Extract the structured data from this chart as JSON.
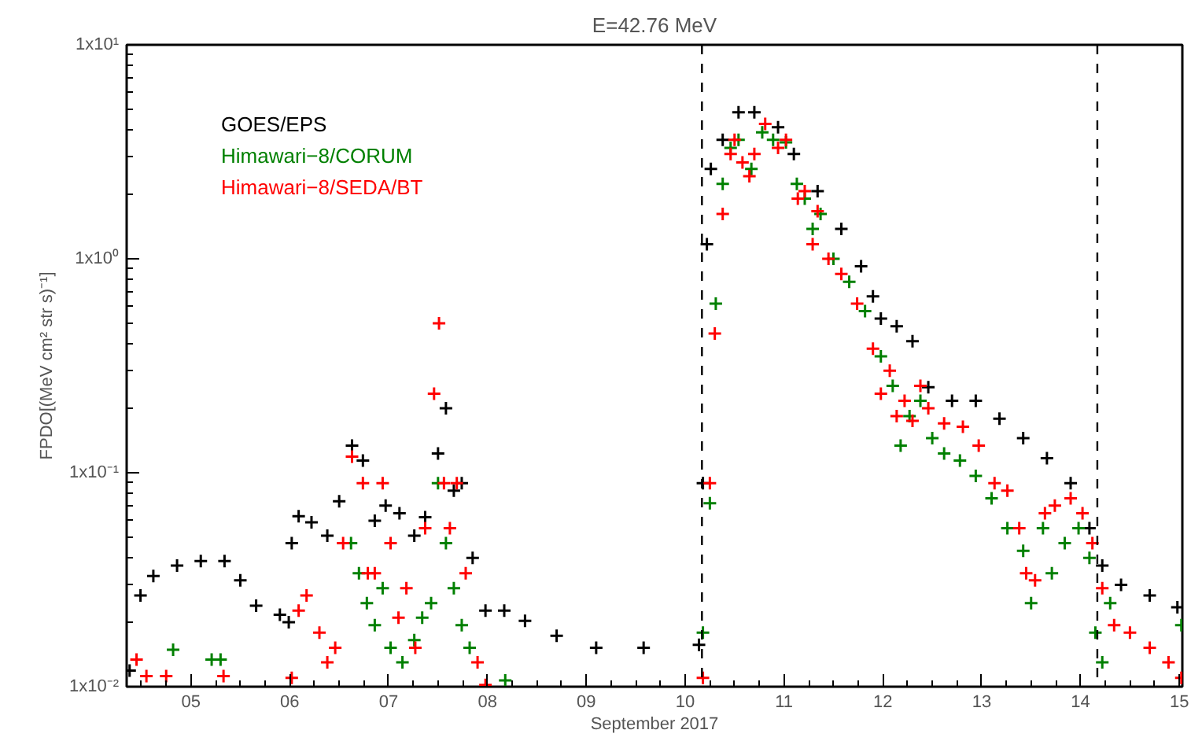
{
  "chart_data": {
    "type": "scatter",
    "title": "E=42.76 MeV",
    "xlabel": "September 2017",
    "ylabel": "FPDO[(MeV cm² str s)⁻¹]",
    "log": "y",
    "marker": "cross",
    "grid": false,
    "legend": "top left",
    "xlim": [
      4.35,
      15.03
    ],
    "xticks": [
      {
        "value": 5,
        "label": "05"
      },
      {
        "value": 6,
        "label": "06"
      },
      {
        "value": 7,
        "label": "07"
      },
      {
        "value": 8,
        "label": "08"
      },
      {
        "value": 9,
        "label": "09"
      },
      {
        "value": 10,
        "label": "10"
      },
      {
        "value": 11,
        "label": "11"
      },
      {
        "value": 12,
        "label": "12"
      },
      {
        "value": 13,
        "label": "13"
      },
      {
        "value": 14,
        "label": "14"
      },
      {
        "value": 15,
        "label": "15"
      }
    ],
    "ylim": [
      0.01,
      10
    ],
    "yticks": [
      {
        "value": 0.01,
        "label": "1x10⁻²"
      },
      {
        "value": 0.1,
        "label": "1x10⁻¹"
      },
      {
        "value": 1,
        "label": "1x10⁰"
      },
      {
        "value": 10,
        "label": "1x10¹"
      }
    ],
    "ref_lines": [
      {
        "axis": "x",
        "value": 10.17,
        "line_style": "dashed",
        "color": "#000000"
      },
      {
        "axis": "x",
        "value": 14.17,
        "line_style": "dashed",
        "color": "#000000"
      }
    ],
    "series": [
      {
        "name": "GOES/EPS",
        "color": "#000000",
        "x": [
          4.38,
          4.49,
          4.62,
          4.86,
          5.1,
          5.34,
          5.5,
          5.66,
          5.9,
          5.99,
          6.02,
          6.09,
          6.22,
          6.38,
          6.5,
          6.63,
          6.74,
          6.86,
          6.97,
          7.11,
          7.26,
          7.37,
          7.5,
          7.58,
          7.66,
          7.74,
          7.85,
          7.98,
          8.17,
          8.38,
          8.7,
          9.1,
          9.58,
          10.14,
          10.18,
          10.22,
          10.26,
          10.38,
          10.54,
          10.7,
          10.94,
          11.1,
          11.34,
          11.58,
          11.78,
          11.9,
          11.98,
          12.14,
          12.3,
          12.46,
          12.7,
          12.94,
          13.18,
          13.42,
          13.66,
          13.9,
          14.09,
          14.22,
          14.41,
          14.7,
          14.98
        ],
        "values": [
          0.0119,
          0.0267,
          0.0329,
          0.0368,
          0.0387,
          0.0387,
          0.0314,
          0.0239,
          0.0217,
          0.02,
          0.0469,
          0.0627,
          0.0587,
          0.0508,
          0.0736,
          0.134,
          0.114,
          0.0597,
          0.0702,
          0.0647,
          0.0508,
          0.062,
          0.123,
          0.2,
          0.0824,
          0.0893,
          0.04,
          0.0227,
          0.0227,
          0.0203,
          0.0173,
          0.0152,
          0.0152,
          0.0157,
          0.0893,
          1.17,
          2.63,
          3.6,
          4.84,
          4.84,
          4.12,
          3.09,
          2.07,
          1.38,
          0.923,
          0.668,
          0.525,
          0.484,
          0.412,
          0.251,
          0.217,
          0.217,
          0.179,
          0.145,
          0.117,
          0.0893,
          0.0551,
          0.0368,
          0.0299,
          0.0267,
          0.0235
        ]
      },
      {
        "name": "Himawari−8/CORUM",
        "color": "#008000",
        "x": [
          4.82,
          5.21,
          5.3,
          6.62,
          6.7,
          6.78,
          6.86,
          6.94,
          7.02,
          7.14,
          7.26,
          7.34,
          7.43,
          7.5,
          7.58,
          7.66,
          7.74,
          7.82,
          8.18,
          10.18,
          10.25,
          10.31,
          10.38,
          10.46,
          10.54,
          10.67,
          10.78,
          10.89,
          11.02,
          11.13,
          11.21,
          11.29,
          11.37,
          11.5,
          11.66,
          11.82,
          11.98,
          12.1,
          12.18,
          12.27,
          12.38,
          12.5,
          12.62,
          12.78,
          12.94,
          13.1,
          13.26,
          13.42,
          13.5,
          13.62,
          13.71,
          13.84,
          13.98,
          14.09,
          14.15,
          14.22,
          14.3,
          15.02
        ],
        "values": [
          0.0149,
          0.0134,
          0.0134,
          0.0469,
          0.0339,
          0.0246,
          0.0194,
          0.0289,
          0.0152,
          0.013,
          0.0165,
          0.021,
          0.0246,
          0.0893,
          0.0469,
          0.0289,
          0.0194,
          0.0152,
          0.0107,
          0.0179,
          0.072,
          0.617,
          2.24,
          3.3,
          3.6,
          2.63,
          3.9,
          3.6,
          3.5,
          2.24,
          1.91,
          1.38,
          1.62,
          1.0,
          0.78,
          0.57,
          0.35,
          0.255,
          0.134,
          0.184,
          0.217,
          0.145,
          0.123,
          0.114,
          0.0966,
          0.076,
          0.0551,
          0.0432,
          0.0246,
          0.0551,
          0.0339,
          0.0469,
          0.0551,
          0.04,
          0.0179,
          0.013,
          0.0246,
          0.0194
        ]
      },
      {
        "name": "Himawari−8/SEDA/BT",
        "color": "#ff0000",
        "x": [
          4.45,
          4.55,
          4.75,
          5.33,
          6.02,
          6.09,
          6.17,
          6.3,
          6.38,
          6.46,
          6.54,
          6.63,
          6.74,
          6.79,
          6.86,
          6.94,
          7.02,
          7.1,
          7.18,
          7.27,
          7.37,
          7.46,
          7.51,
          7.56,
          7.62,
          7.69,
          7.78,
          7.9,
          7.98,
          10.18,
          10.25,
          10.3,
          10.38,
          10.46,
          10.5,
          10.58,
          10.65,
          10.7,
          10.81,
          10.94,
          11.02,
          11.14,
          11.21,
          11.29,
          11.34,
          11.45,
          11.58,
          11.74,
          11.9,
          11.98,
          12.07,
          12.14,
          12.22,
          12.3,
          12.38,
          12.46,
          12.62,
          12.81,
          12.97,
          13.13,
          13.26,
          13.38,
          13.45,
          13.54,
          13.64,
          13.74,
          13.9,
          14.02,
          14.12,
          14.22,
          14.34,
          14.5,
          14.7,
          14.89,
          15.02
        ],
        "values": [
          0.0134,
          0.0112,
          0.0112,
          0.0112,
          0.011,
          0.0227,
          0.0267,
          0.0179,
          0.013,
          0.0152,
          0.0469,
          0.119,
          0.0893,
          0.0339,
          0.0339,
          0.0893,
          0.0469,
          0.021,
          0.0289,
          0.0152,
          0.0551,
          0.234,
          0.5,
          0.0893,
          0.0551,
          0.0893,
          0.0339,
          0.013,
          0.0102,
          0.011,
          0.0893,
          0.447,
          1.62,
          3.09,
          3.6,
          2.82,
          2.43,
          3.09,
          4.27,
          3.3,
          3.6,
          1.91,
          2.07,
          1.17,
          1.67,
          1.0,
          0.85,
          0.617,
          0.38,
          0.234,
          0.3,
          0.184,
          0.217,
          0.175,
          0.255,
          0.2,
          0.17,
          0.164,
          0.134,
          0.0893,
          0.0824,
          0.0551,
          0.0339,
          0.0314,
          0.0647,
          0.0702,
          0.076,
          0.0647,
          0.0469,
          0.0289,
          0.0194,
          0.0179,
          0.0152,
          0.013,
          0.011
        ]
      }
    ]
  }
}
